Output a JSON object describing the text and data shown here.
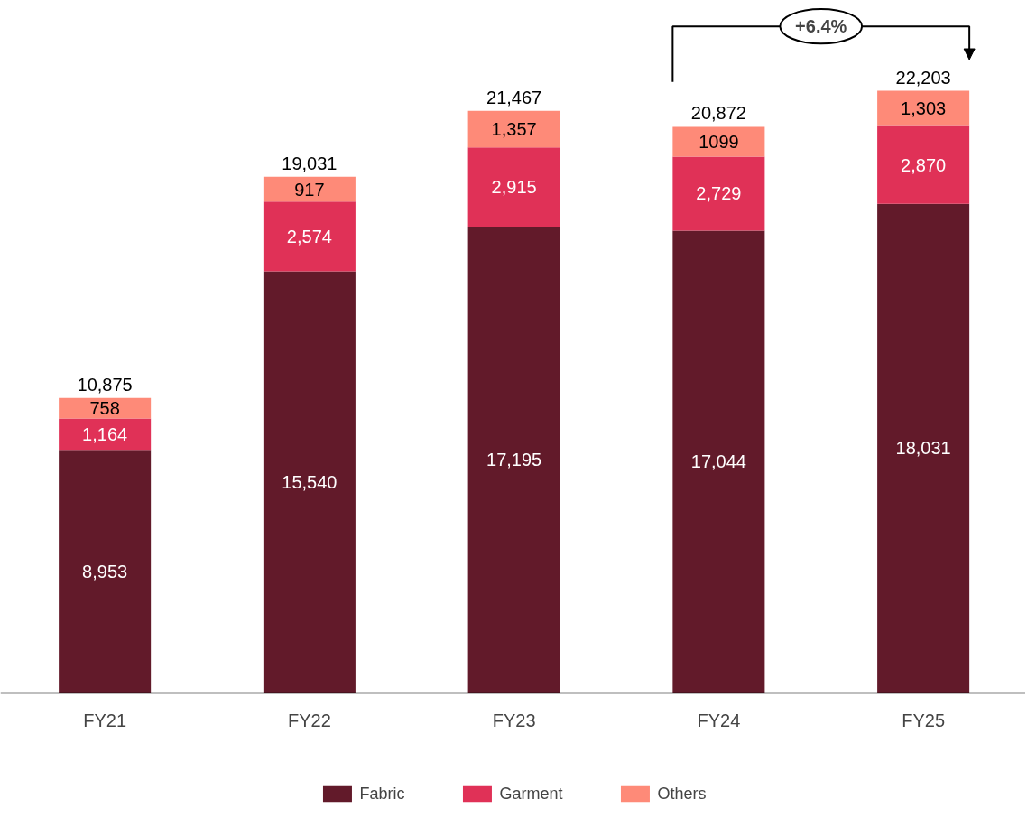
{
  "chart_data": {
    "type": "bar",
    "stacked": true,
    "categories": [
      "FY21",
      "FY22",
      "FY23",
      "FY24",
      "FY25"
    ],
    "series": [
      {
        "name": "Fabric",
        "color": "#621a2a",
        "values": [
          8953,
          15540,
          17195,
          17044,
          18031
        ],
        "value_labels": [
          "8,953",
          "15,540",
          "17,195",
          "17,044",
          "18,031"
        ]
      },
      {
        "name": "Garment",
        "color": "#e03157",
        "values": [
          1164,
          2574,
          2915,
          2729,
          2870
        ],
        "value_labels": [
          "1,164",
          "2,574",
          "2,915",
          "2,729",
          "2,870"
        ]
      },
      {
        "name": "Others",
        "color": "#fe8a78",
        "values": [
          758,
          917,
          1357,
          1099,
          1303
        ],
        "value_labels": [
          "758",
          "917",
          "1,357",
          "1099",
          "1,303"
        ]
      }
    ],
    "totals": [
      "10,875",
      "19,031",
      "21,467",
      "20,872",
      "22,203"
    ],
    "annotations": [
      "+6.4%"
    ],
    "legend": "bottom",
    "grid": false
  }
}
